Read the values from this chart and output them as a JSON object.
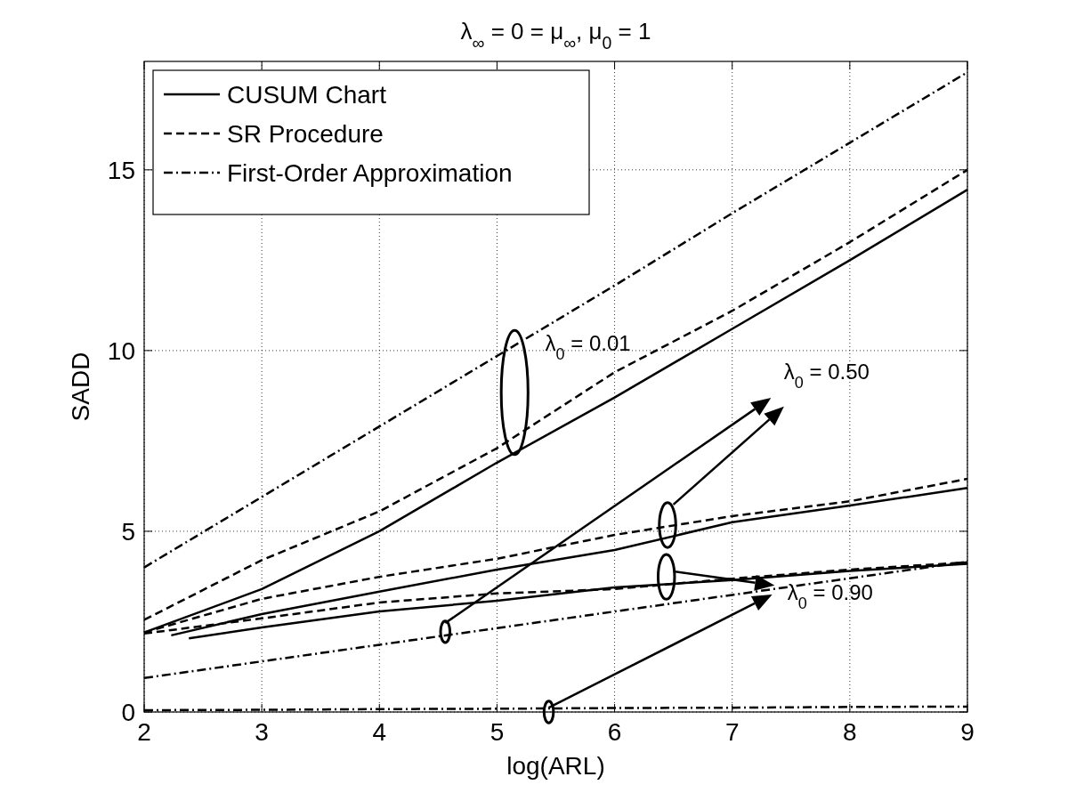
{
  "chart_data": {
    "type": "line",
    "title": "λ$_{∞}$ = 0 = μ$_{∞}$, μ$_{0}$ = 1",
    "xlabel": "log(ARL)",
    "ylabel": "SADD",
    "xlim": [
      2,
      9
    ],
    "ylim": [
      0,
      18
    ],
    "xticks": [
      2,
      3,
      4,
      5,
      6,
      7,
      8,
      9
    ],
    "yticks": [
      0,
      5,
      10,
      15
    ],
    "grid": true,
    "legend": "top left",
    "annotations": [
      "λ$_{0}$ = 0.01",
      "λ$_{0}$ = 0.50",
      "λ$_{0}$ = 0.90"
    ],
    "series": [
      {
        "name": "CUSUM Chart",
        "color": "#000000",
        "line_style": "solid",
        "x": [
          2,
          3,
          4,
          5,
          6,
          7,
          8,
          9
        ],
        "values": [
          2.2,
          3.4,
          5.0,
          6.9,
          8.7,
          10.6,
          12.5,
          14.45
        ]
      },
      {
        "name": "SR Procedure",
        "color": "#000000",
        "line_style": "dashed",
        "x": [
          2,
          3,
          4,
          5,
          6,
          7,
          8,
          9
        ],
        "values": [
          2.55,
          4.2,
          5.55,
          7.3,
          9.4,
          11.1,
          13.0,
          15.0
        ]
      },
      {
        "name": "First-Order Approximation",
        "color": "#000000",
        "line_style": "dashdot",
        "x": [
          2,
          3,
          4,
          5,
          6,
          7,
          8,
          9
        ],
        "values": [
          4.0,
          5.95,
          7.9,
          9.85,
          11.8,
          13.8,
          15.75,
          17.7
        ]
      },
      {
        "color": "#000000",
        "line_style": "solid",
        "x": [
          2.23,
          3,
          4,
          5,
          6,
          7,
          8,
          9
        ],
        "values": [
          2.12,
          2.71,
          3.33,
          3.94,
          4.48,
          5.25,
          5.71,
          6.2
        ]
      },
      {
        "color": "#000000",
        "line_style": "dashed",
        "x": [
          2,
          3,
          4,
          5,
          6,
          7,
          8,
          9
        ],
        "values": [
          2.2,
          3.13,
          3.74,
          4.24,
          4.9,
          5.42,
          5.83,
          6.45
        ]
      },
      {
        "color": "#000000",
        "line_style": "dashdot",
        "x": [
          2,
          3,
          4,
          5,
          6,
          7,
          8,
          9
        ],
        "values": [
          0.94,
          1.4,
          1.86,
          2.32,
          2.78,
          3.24,
          3.7,
          4.16
        ]
      },
      {
        "color": "#000000",
        "line_style": "solid",
        "x": [
          2.38,
          3,
          4,
          5,
          6,
          7,
          8,
          9
        ],
        "values": [
          2.04,
          2.34,
          2.78,
          3.08,
          3.45,
          3.65,
          3.9,
          4.1
        ]
      },
      {
        "color": "#000000",
        "line_style": "dashed",
        "x": [
          2,
          3,
          4,
          5,
          6,
          7,
          8,
          9
        ],
        "values": [
          2.17,
          2.59,
          3.03,
          3.28,
          3.4,
          3.69,
          3.94,
          4.14
        ]
      },
      {
        "color": "#000000",
        "line_style": "dashdot",
        "x": [
          2,
          3,
          4,
          5,
          6,
          7,
          8,
          9
        ],
        "values": [
          0.05,
          0.06,
          0.08,
          0.09,
          0.11,
          0.12,
          0.14,
          0.15
        ]
      }
    ]
  }
}
